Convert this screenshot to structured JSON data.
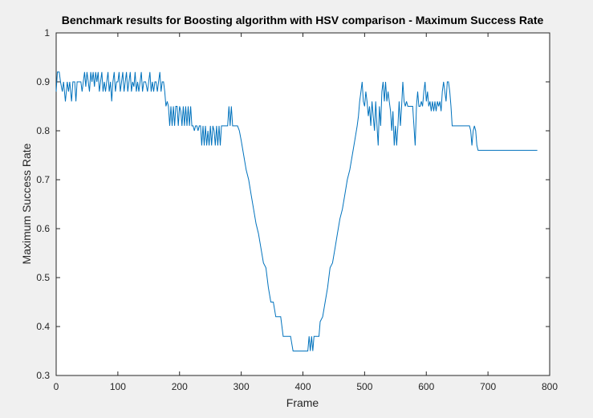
{
  "chart_data": {
    "type": "line",
    "title": "Benchmark results for Boosting algorithm with HSV comparison - Maximum Success Rate",
    "xlabel": "Frame",
    "ylabel": "Maximum Success Rate",
    "xlim": [
      0,
      800
    ],
    "ylim": [
      0.3,
      1
    ],
    "xticks": [
      "0",
      "100",
      "200",
      "300",
      "400",
      "500",
      "600",
      "700",
      "800"
    ],
    "yticks": [
      "0.3",
      "0.4",
      "0.5",
      "0.6",
      "0.7",
      "0.8",
      "0.9",
      "1"
    ],
    "grid": false,
    "legend": "none",
    "series": [
      {
        "color": "#0072bd",
        "points": [
          [
            0,
            0.88
          ],
          [
            2,
            0.92
          ],
          [
            5,
            0.92
          ],
          [
            7,
            0.9
          ],
          [
            10,
            0.88
          ],
          [
            12,
            0.9
          ],
          [
            15,
            0.86
          ],
          [
            18,
            0.9
          ],
          [
            20,
            0.88
          ],
          [
            22,
            0.9
          ],
          [
            25,
            0.86
          ],
          [
            27,
            0.9
          ],
          [
            30,
            0.9
          ],
          [
            32,
            0.86
          ],
          [
            34,
            0.9
          ],
          [
            38,
            0.9
          ],
          [
            40,
            0.9
          ],
          [
            42,
            0.88
          ],
          [
            44,
            0.9
          ],
          [
            46,
            0.92
          ],
          [
            48,
            0.89
          ],
          [
            50,
            0.92
          ],
          [
            52,
            0.9
          ],
          [
            54,
            0.88
          ],
          [
            56,
            0.92
          ],
          [
            58,
            0.9
          ],
          [
            60,
            0.92
          ],
          [
            62,
            0.89
          ],
          [
            64,
            0.92
          ],
          [
            66,
            0.9
          ],
          [
            68,
            0.92
          ],
          [
            70,
            0.88
          ],
          [
            72,
            0.9
          ],
          [
            74,
            0.92
          ],
          [
            76,
            0.88
          ],
          [
            78,
            0.9
          ],
          [
            80,
            0.88
          ],
          [
            82,
            0.9
          ],
          [
            84,
            0.92
          ],
          [
            86,
            0.88
          ],
          [
            88,
            0.9
          ],
          [
            90,
            0.86
          ],
          [
            92,
            0.9
          ],
          [
            94,
            0.92
          ],
          [
            96,
            0.88
          ],
          [
            98,
            0.9
          ],
          [
            100,
            0.9
          ],
          [
            102,
            0.92
          ],
          [
            104,
            0.88
          ],
          [
            106,
            0.9
          ],
          [
            108,
            0.92
          ],
          [
            110,
            0.88
          ],
          [
            112,
            0.9
          ],
          [
            114,
            0.92
          ],
          [
            116,
            0.88
          ],
          [
            118,
            0.9
          ],
          [
            120,
            0.92
          ],
          [
            122,
            0.88
          ],
          [
            124,
            0.9
          ],
          [
            126,
            0.89
          ],
          [
            128,
            0.92
          ],
          [
            130,
            0.88
          ],
          [
            132,
            0.9
          ],
          [
            134,
            0.88
          ],
          [
            136,
            0.9
          ],
          [
            138,
            0.92
          ],
          [
            140,
            0.88
          ],
          [
            142,
            0.9
          ],
          [
            145,
            0.9
          ],
          [
            148,
            0.88
          ],
          [
            150,
            0.9
          ],
          [
            152,
            0.92
          ],
          [
            154,
            0.88
          ],
          [
            156,
            0.9
          ],
          [
            158,
            0.88
          ],
          [
            160,
            0.9
          ],
          [
            162,
            0.9
          ],
          [
            164,
            0.88
          ],
          [
            166,
            0.9
          ],
          [
            168,
            0.92
          ],
          [
            170,
            0.88
          ],
          [
            172,
            0.9
          ],
          [
            174,
            0.9
          ],
          [
            176,
            0.88
          ],
          [
            178,
            0.85
          ],
          [
            180,
            0.86
          ],
          [
            182,
            0.85
          ],
          [
            184,
            0.81
          ],
          [
            186,
            0.85
          ],
          [
            188,
            0.81
          ],
          [
            190,
            0.85
          ],
          [
            192,
            0.81
          ],
          [
            194,
            0.85
          ],
          [
            196,
            0.85
          ],
          [
            198,
            0.81
          ],
          [
            200,
            0.85
          ],
          [
            202,
            0.84
          ],
          [
            204,
            0.81
          ],
          [
            206,
            0.85
          ],
          [
            208,
            0.81
          ],
          [
            210,
            0.85
          ],
          [
            212,
            0.81
          ],
          [
            214,
            0.85
          ],
          [
            216,
            0.81
          ],
          [
            218,
            0.85
          ],
          [
            220,
            0.81
          ],
          [
            222,
            0.81
          ],
          [
            224,
            0.8
          ],
          [
            226,
            0.81
          ],
          [
            228,
            0.81
          ],
          [
            230,
            0.8
          ],
          [
            232,
            0.81
          ],
          [
            234,
            0.81
          ],
          [
            236,
            0.77
          ],
          [
            238,
            0.81
          ],
          [
            240,
            0.77
          ],
          [
            242,
            0.81
          ],
          [
            244,
            0.77
          ],
          [
            246,
            0.8
          ],
          [
            248,
            0.77
          ],
          [
            250,
            0.81
          ],
          [
            252,
            0.77
          ],
          [
            254,
            0.81
          ],
          [
            256,
            0.8
          ],
          [
            258,
            0.77
          ],
          [
            260,
            0.81
          ],
          [
            262,
            0.77
          ],
          [
            264,
            0.81
          ],
          [
            266,
            0.77
          ],
          [
            268,
            0.81
          ],
          [
            272,
            0.81
          ],
          [
            276,
            0.81
          ],
          [
            278,
            0.81
          ],
          [
            280,
            0.85
          ],
          [
            282,
            0.81
          ],
          [
            284,
            0.85
          ],
          [
            286,
            0.81
          ],
          [
            290,
            0.81
          ],
          [
            294,
            0.81
          ],
          [
            297,
            0.8
          ],
          [
            300,
            0.78
          ],
          [
            304,
            0.75
          ],
          [
            308,
            0.72
          ],
          [
            312,
            0.7
          ],
          [
            316,
            0.67
          ],
          [
            320,
            0.64
          ],
          [
            324,
            0.61
          ],
          [
            328,
            0.59
          ],
          [
            332,
            0.56
          ],
          [
            336,
            0.53
          ],
          [
            340,
            0.52
          ],
          [
            344,
            0.48
          ],
          [
            348,
            0.45
          ],
          [
            352,
            0.45
          ],
          [
            356,
            0.42
          ],
          [
            360,
            0.42
          ],
          [
            364,
            0.42
          ],
          [
            368,
            0.38
          ],
          [
            372,
            0.38
          ],
          [
            376,
            0.38
          ],
          [
            380,
            0.38
          ],
          [
            384,
            0.35
          ],
          [
            388,
            0.35
          ],
          [
            392,
            0.35
          ],
          [
            396,
            0.35
          ],
          [
            400,
            0.35
          ],
          [
            404,
            0.35
          ],
          [
            408,
            0.35
          ],
          [
            410,
            0.38
          ],
          [
            412,
            0.35
          ],
          [
            414,
            0.38
          ],
          [
            416,
            0.35
          ],
          [
            418,
            0.38
          ],
          [
            422,
            0.38
          ],
          [
            426,
            0.38
          ],
          [
            428,
            0.41
          ],
          [
            432,
            0.42
          ],
          [
            436,
            0.45
          ],
          [
            440,
            0.48
          ],
          [
            444,
            0.52
          ],
          [
            448,
            0.53
          ],
          [
            452,
            0.56
          ],
          [
            456,
            0.59
          ],
          [
            460,
            0.62
          ],
          [
            464,
            0.64
          ],
          [
            468,
            0.67
          ],
          [
            472,
            0.7
          ],
          [
            476,
            0.72
          ],
          [
            480,
            0.75
          ],
          [
            484,
            0.78
          ],
          [
            488,
            0.81
          ],
          [
            490,
            0.83
          ],
          [
            492,
            0.86
          ],
          [
            494,
            0.88
          ],
          [
            496,
            0.9
          ],
          [
            498,
            0.86
          ],
          [
            500,
            0.85
          ],
          [
            502,
            0.88
          ],
          [
            504,
            0.86
          ],
          [
            506,
            0.83
          ],
          [
            508,
            0.85
          ],
          [
            510,
            0.81
          ],
          [
            512,
            0.86
          ],
          [
            514,
            0.83
          ],
          [
            516,
            0.8
          ],
          [
            518,
            0.86
          ],
          [
            520,
            0.81
          ],
          [
            522,
            0.77
          ],
          [
            524,
            0.85
          ],
          [
            526,
            0.81
          ],
          [
            528,
            0.88
          ],
          [
            530,
            0.9
          ],
          [
            532,
            0.86
          ],
          [
            534,
            0.9
          ],
          [
            536,
            0.86
          ],
          [
            538,
            0.88
          ],
          [
            540,
            0.86
          ],
          [
            542,
            0.84
          ],
          [
            544,
            0.8
          ],
          [
            546,
            0.84
          ],
          [
            548,
            0.77
          ],
          [
            550,
            0.81
          ],
          [
            552,
            0.77
          ],
          [
            554,
            0.81
          ],
          [
            556,
            0.86
          ],
          [
            558,
            0.81
          ],
          [
            560,
            0.85
          ],
          [
            562,
            0.9
          ],
          [
            564,
            0.86
          ],
          [
            566,
            0.85
          ],
          [
            568,
            0.86
          ],
          [
            570,
            0.85
          ],
          [
            574,
            0.85
          ],
          [
            578,
            0.85
          ],
          [
            582,
            0.77
          ],
          [
            584,
            0.85
          ],
          [
            586,
            0.88
          ],
          [
            588,
            0.85
          ],
          [
            590,
            0.85
          ],
          [
            592,
            0.86
          ],
          [
            594,
            0.85
          ],
          [
            596,
            0.88
          ],
          [
            598,
            0.9
          ],
          [
            600,
            0.86
          ],
          [
            602,
            0.88
          ],
          [
            604,
            0.85
          ],
          [
            606,
            0.86
          ],
          [
            608,
            0.84
          ],
          [
            610,
            0.86
          ],
          [
            612,
            0.84
          ],
          [
            614,
            0.86
          ],
          [
            616,
            0.84
          ],
          [
            618,
            0.86
          ],
          [
            620,
            0.85
          ],
          [
            622,
            0.86
          ],
          [
            624,
            0.84
          ],
          [
            626,
            0.88
          ],
          [
            628,
            0.9
          ],
          [
            630,
            0.88
          ],
          [
            632,
            0.86
          ],
          [
            634,
            0.9
          ],
          [
            636,
            0.9
          ],
          [
            638,
            0.88
          ],
          [
            640,
            0.85
          ],
          [
            642,
            0.81
          ],
          [
            646,
            0.81
          ],
          [
            650,
            0.81
          ],
          [
            654,
            0.81
          ],
          [
            658,
            0.81
          ],
          [
            662,
            0.81
          ],
          [
            666,
            0.81
          ],
          [
            670,
            0.81
          ],
          [
            672,
            0.8
          ],
          [
            674,
            0.77
          ],
          [
            676,
            0.8
          ],
          [
            678,
            0.81
          ],
          [
            680,
            0.8
          ],
          [
            682,
            0.77
          ],
          [
            684,
            0.76
          ],
          [
            686,
            0.76
          ],
          [
            690,
            0.76
          ],
          [
            694,
            0.76
          ],
          [
            698,
            0.76
          ],
          [
            702,
            0.76
          ],
          [
            704,
            0.76
          ],
          [
            706,
            0.76
          ],
          [
            708,
            0.76
          ],
          [
            712,
            0.76
          ],
          [
            716,
            0.76
          ],
          [
            720,
            0.76
          ],
          [
            724,
            0.76
          ],
          [
            728,
            0.76
          ],
          [
            732,
            0.76
          ],
          [
            736,
            0.76
          ],
          [
            740,
            0.76
          ],
          [
            744,
            0.76
          ],
          [
            748,
            0.76
          ],
          [
            752,
            0.76
          ],
          [
            756,
            0.76
          ],
          [
            760,
            0.76
          ],
          [
            764,
            0.76
          ],
          [
            768,
            0.76
          ],
          [
            772,
            0.76
          ],
          [
            776,
            0.76
          ],
          [
            780,
            0.76
          ]
        ]
      }
    ]
  },
  "colors": {
    "figure_background": "#f0f0f0",
    "axes_background": "#ffffff",
    "axis_color": "#262626",
    "line_color": "#0072bd"
  }
}
